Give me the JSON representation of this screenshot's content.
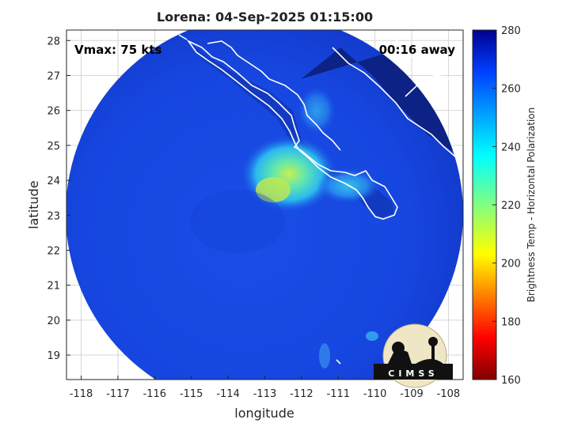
{
  "title": "Lorena: 04-Sep-2025 01:15:00",
  "annotations": {
    "vmax": "Vmax: 75 kts",
    "time_away": "00:16 away"
  },
  "axes": {
    "xlabel": "longitude",
    "ylabel": "latitude",
    "xlim": [
      -118.4,
      -107.6
    ],
    "ylim": [
      18.3,
      28.3
    ],
    "xticks": [
      "-118",
      "-117",
      "-116",
      "-115",
      "-114",
      "-113",
      "-112",
      "-111",
      "-110",
      "-109",
      "-108"
    ],
    "yticks": [
      "19",
      "20",
      "21",
      "22",
      "23",
      "24",
      "25",
      "26",
      "27",
      "28"
    ],
    "grid": true
  },
  "colorbar": {
    "label": "Brightness Temp - Horizontal Polarization",
    "ticks": [
      "280",
      "260",
      "240",
      "220",
      "200",
      "180",
      "160"
    ],
    "range": [
      160,
      280
    ],
    "colormap": "jet"
  },
  "logo": {
    "text": "CIMSS"
  },
  "colors": {
    "ocean": "#1548e0",
    "land_cold": "#0b1f7a",
    "warm_core": "#9ee85a",
    "coast": "#ffffff"
  }
}
